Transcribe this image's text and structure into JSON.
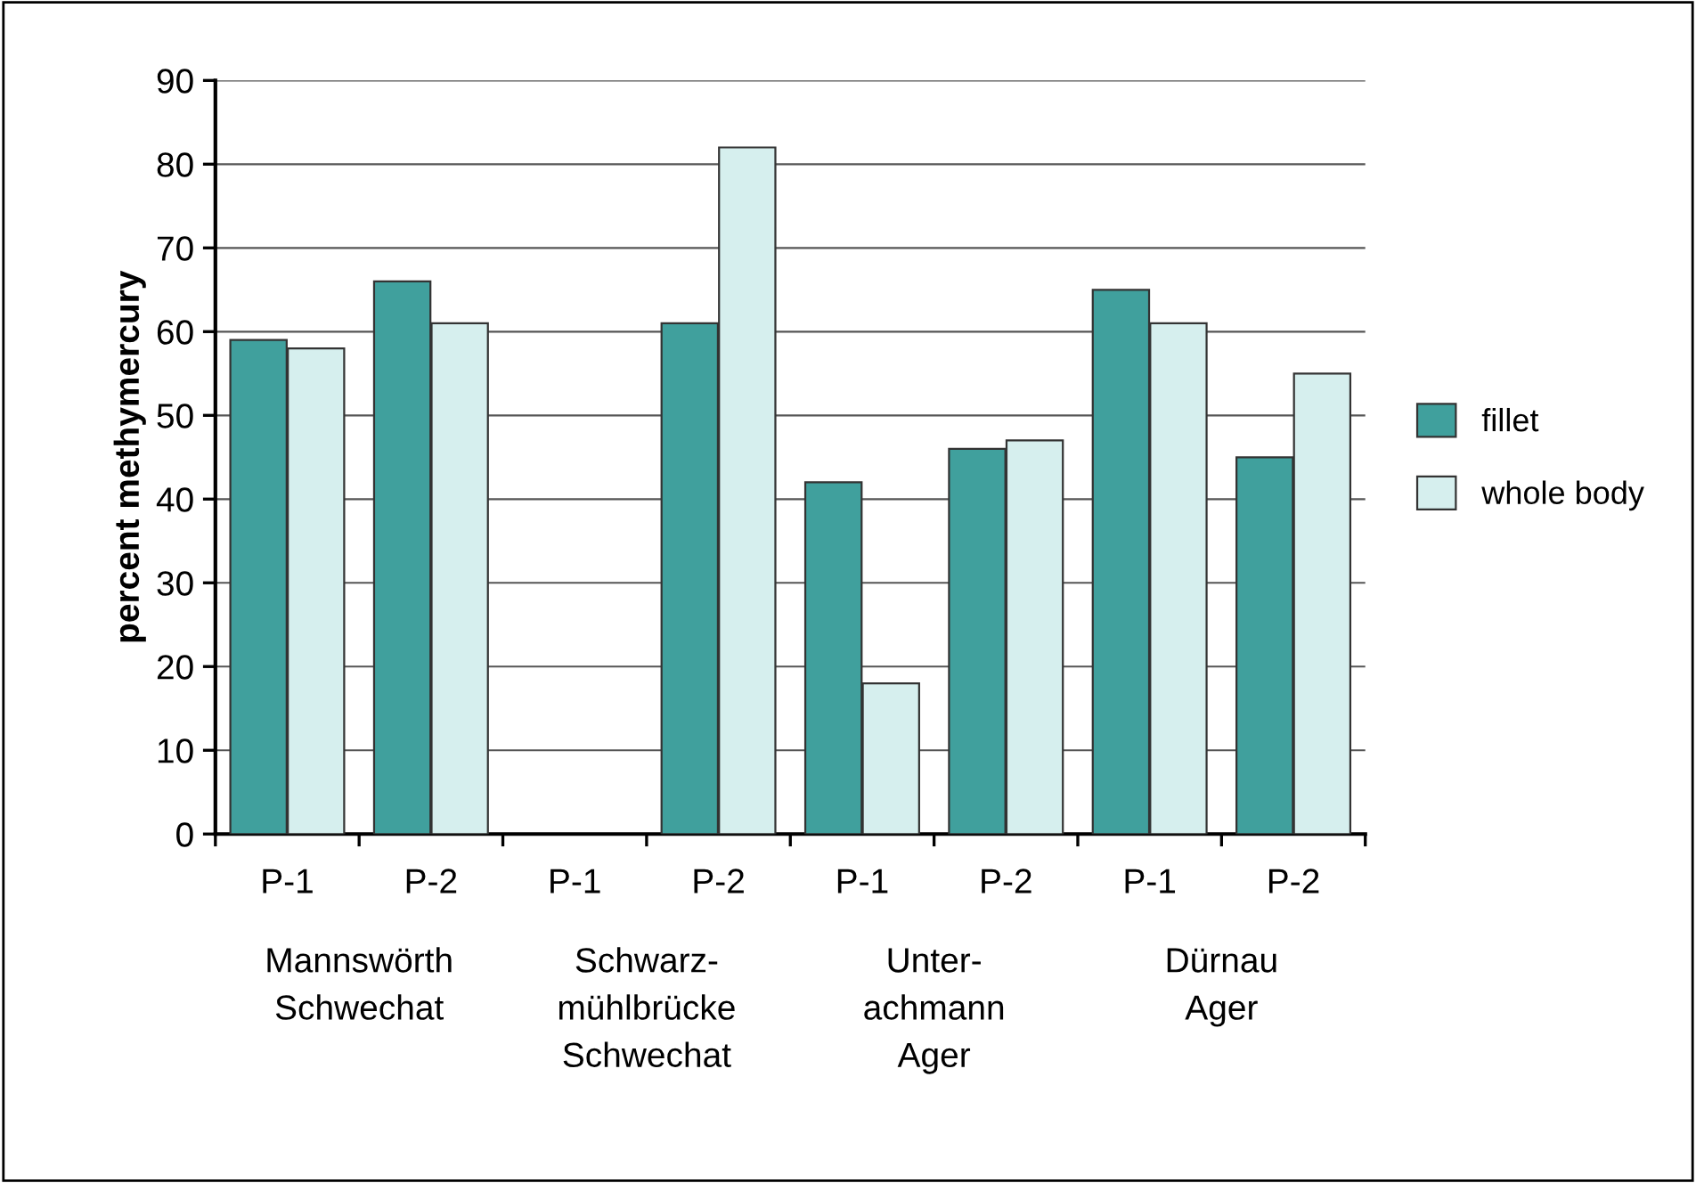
{
  "chart_data": {
    "type": "bar",
    "ylabel": "percent methymercury",
    "categories": [
      "P-1",
      "P-2",
      "P-1",
      "P-2",
      "P-1",
      "P-2",
      "P-1",
      "P-2"
    ],
    "annotations": [
      "Mannswörth\nSchwechat",
      "Schwarz-\nmühlbrücke\nSchwechat",
      "Unter-\nachmann\nAger",
      "Dürnau\nAger"
    ],
    "series": [
      {
        "name": "fillet",
        "color": "#40a09d",
        "values": [
          59,
          66,
          null,
          61,
          42,
          46,
          65,
          45
        ]
      },
      {
        "name": "whole body",
        "color": "#d6efee",
        "values": [
          58,
          61,
          null,
          82,
          18,
          47,
          61,
          55
        ]
      }
    ],
    "ylim": [
      0,
      90
    ],
    "yticks": [
      0,
      10,
      20,
      30,
      40,
      50,
      60,
      70,
      80,
      90
    ],
    "grid": "y",
    "legend": "right"
  }
}
